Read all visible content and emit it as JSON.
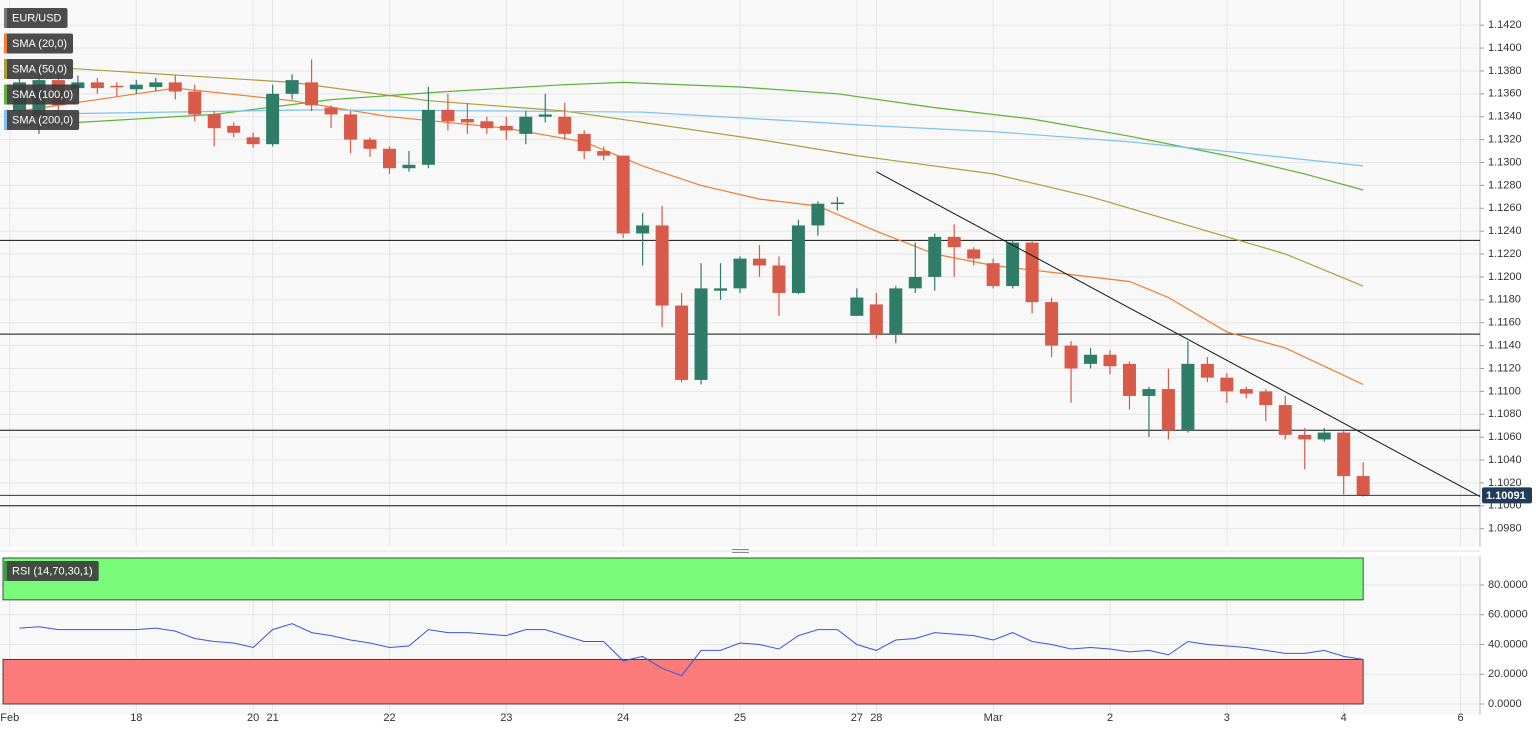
{
  "chart_data": [
    {
      "type": "candlestick",
      "name": "EUR/USD",
      "up_color": "#2f7c68",
      "down_color": "#d85a48",
      "open": [
        1.1345,
        1.134,
        1.1372,
        1.1365,
        1.137,
        1.1367,
        1.1364,
        1.1366,
        1.137,
        1.1362,
        1.1342,
        1.1332,
        1.1322,
        1.1316,
        1.136,
        1.137,
        1.1348,
        1.1342,
        1.132,
        1.1312,
        1.1295,
        1.1298,
        1.1346,
        1.1338,
        1.1336,
        1.1332,
        1.1325,
        1.134,
        1.134,
        1.1325,
        1.131,
        1.1306,
        1.1238,
        1.1245,
        1.1175,
        1.111,
        1.1188,
        1.119,
        1.1216,
        1.121,
        1.1186,
        1.1245,
        1.1264,
        1.1166,
        1.1176,
        1.115,
        1.119,
        1.12,
        1.1235,
        1.1224,
        1.1212,
        1.1192,
        1.123,
        1.1178,
        1.114,
        1.1124,
        1.1132,
        1.1124,
        1.1096,
        1.1102,
        1.1066,
        1.1124,
        1.1112,
        1.1102,
        1.11,
        1.1088,
        1.1062,
        1.1058,
        1.1064,
        1.1026
      ],
      "high": [
        1.1375,
        1.1378,
        1.1378,
        1.1376,
        1.1374,
        1.137,
        1.1372,
        1.1374,
        1.1376,
        1.1368,
        1.1345,
        1.1335,
        1.1326,
        1.1368,
        1.1377,
        1.139,
        1.135,
        1.1345,
        1.1322,
        1.1314,
        1.131,
        1.1366,
        1.136,
        1.1352,
        1.134,
        1.134,
        1.1345,
        1.136,
        1.1352,
        1.1328,
        1.1314,
        1.1306,
        1.1256,
        1.1262,
        1.1186,
        1.1212,
        1.1212,
        1.1218,
        1.1228,
        1.1218,
        1.125,
        1.1266,
        1.127,
        1.119,
        1.1186,
        1.1192,
        1.123,
        1.1238,
        1.1246,
        1.1226,
        1.1216,
        1.1232,
        1.1232,
        1.1182,
        1.1144,
        1.1138,
        1.1136,
        1.1126,
        1.1104,
        1.112,
        1.1144,
        1.113,
        1.1116,
        1.1104,
        1.1102,
        1.1096,
        1.1068,
        1.1068,
        1.1066,
        1.1038
      ],
      "low": [
        1.1335,
        1.1325,
        1.134,
        1.136,
        1.136,
        1.1358,
        1.136,
        1.1362,
        1.1355,
        1.1336,
        1.1314,
        1.1322,
        1.1313,
        1.1314,
        1.1355,
        1.1345,
        1.133,
        1.1308,
        1.1305,
        1.129,
        1.1292,
        1.1295,
        1.1328,
        1.1325,
        1.1325,
        1.132,
        1.1316,
        1.1335,
        1.132,
        1.1303,
        1.1302,
        1.1234,
        1.121,
        1.1156,
        1.1108,
        1.1106,
        1.118,
        1.1186,
        1.12,
        1.1166,
        1.1185,
        1.1236,
        1.1258,
        1.1166,
        1.1146,
        1.1142,
        1.1186,
        1.1188,
        1.12,
        1.121,
        1.119,
        1.119,
        1.1168,
        1.113,
        1.109,
        1.112,
        1.1115,
        1.1084,
        1.106,
        1.1058,
        1.1064,
        1.1108,
        1.109,
        1.1094,
        1.1074,
        1.1058,
        1.1032,
        1.1056,
        1.101,
        1.1008
      ],
      "close": [
        1.137,
        1.1372,
        1.135,
        1.137,
        1.1365,
        1.1366,
        1.1368,
        1.137,
        1.1362,
        1.1342,
        1.133,
        1.1326,
        1.1316,
        1.136,
        1.1372,
        1.135,
        1.1342,
        1.132,
        1.1312,
        1.1295,
        1.1298,
        1.1346,
        1.1336,
        1.1335,
        1.133,
        1.1328,
        1.134,
        1.1342,
        1.1325,
        1.131,
        1.1306,
        1.1238,
        1.1245,
        1.1175,
        1.111,
        1.119,
        1.119,
        1.1216,
        1.121,
        1.1186,
        1.1245,
        1.1264,
        1.1265,
        1.1182,
        1.115,
        1.119,
        1.12,
        1.1235,
        1.1226,
        1.1216,
        1.1192,
        1.123,
        1.1178,
        1.114,
        1.112,
        1.1132,
        1.1122,
        1.1096,
        1.1102,
        1.1066,
        1.1124,
        1.1112,
        1.11,
        1.1098,
        1.1088,
        1.1062,
        1.1058,
        1.1064,
        1.1026,
        1.1009
      ],
      "xlim": [
        -1,
        75
      ],
      "xticks": [
        {
          "value": -0.5,
          "label": "Feb"
        },
        {
          "value": 6,
          "label": "18"
        },
        {
          "value": 12,
          "label": "20"
        },
        {
          "value": 13,
          "label": "21"
        },
        {
          "value": 19,
          "label": "22"
        },
        {
          "value": 25,
          "label": "23"
        },
        {
          "value": 31,
          "label": "24"
        },
        {
          "value": 37,
          "label": "25"
        },
        {
          "value": 43,
          "label": "27"
        },
        {
          "value": 44,
          "label": "28"
        },
        {
          "value": 50,
          "label": "Mar"
        },
        {
          "value": 56,
          "label": "2"
        },
        {
          "value": 62,
          "label": "3"
        },
        {
          "value": 68,
          "label": "4"
        },
        {
          "value": 74,
          "label": "6"
        }
      ],
      "ylim": [
        1.0964,
        1.1442
      ],
      "yticks": [
        {
          "value": 1.098,
          "label": "1.0980"
        },
        {
          "value": 1.1,
          "label": "1.1000"
        },
        {
          "value": 1.102,
          "label": "1.1020"
        },
        {
          "value": 1.104,
          "label": "1.1040"
        },
        {
          "value": 1.106,
          "label": "1.1060"
        },
        {
          "value": 1.108,
          "label": "1.1080"
        },
        {
          "value": 1.11,
          "label": "1.1100"
        },
        {
          "value": 1.112,
          "label": "1.1120"
        },
        {
          "value": 1.114,
          "label": "1.1140"
        },
        {
          "value": 1.116,
          "label": "1.1160"
        },
        {
          "value": 1.118,
          "label": "1.1180"
        },
        {
          "value": 1.12,
          "label": "1.1200"
        },
        {
          "value": 1.122,
          "label": "1.1220"
        },
        {
          "value": 1.124,
          "label": "1.1240"
        },
        {
          "value": 1.126,
          "label": "1.1260"
        },
        {
          "value": 1.128,
          "label": "1.1280"
        },
        {
          "value": 1.13,
          "label": "1.1300"
        },
        {
          "value": 1.132,
          "label": "1.1320"
        },
        {
          "value": 1.134,
          "label": "1.1340"
        },
        {
          "value": 1.136,
          "label": "1.1360"
        },
        {
          "value": 1.138,
          "label": "1.1380"
        },
        {
          "value": 1.14,
          "label": "1.1400"
        },
        {
          "value": 1.142,
          "label": "1.1420"
        }
      ],
      "overlays": [
        {
          "name": "SMA (20,0)",
          "color": "#ef7d31",
          "x": [
            0,
            8,
            14,
            19,
            25,
            29,
            32,
            35,
            38,
            41,
            44,
            47,
            50,
            54,
            57,
            59,
            62,
            65,
            69
          ],
          "values": [
            1.1345,
            1.1365,
            1.1354,
            1.134,
            1.133,
            1.1318,
            1.1297,
            1.128,
            1.1268,
            1.1262,
            1.124,
            1.122,
            1.121,
            1.1202,
            1.1196,
            1.1182,
            1.1152,
            1.1138,
            1.1106
          ]
        },
        {
          "name": "SMA (50,0)",
          "color": "#a9a03a",
          "x": [
            0,
            14,
            21,
            28,
            32,
            38,
            43,
            50,
            55,
            60,
            65,
            69
          ],
          "values": [
            1.1385,
            1.137,
            1.1354,
            1.1345,
            1.1335,
            1.132,
            1.1306,
            1.129,
            1.127,
            1.1245,
            1.122,
            1.1192
          ]
        },
        {
          "name": "SMA (100,0)",
          "color": "#5db337",
          "x": [
            0,
            10,
            16,
            22,
            28,
            31,
            37,
            42,
            47,
            52,
            57,
            62,
            66,
            69
          ],
          "values": [
            1.1332,
            1.1342,
            1.1355,
            1.1362,
            1.1368,
            1.137,
            1.1366,
            1.136,
            1.1348,
            1.1338,
            1.1323,
            1.1306,
            1.129,
            1.1276
          ]
        },
        {
          "name": "SMA (200,0)",
          "color": "#7cc4ef",
          "x": [
            0,
            15,
            25,
            32,
            38,
            44,
            50,
            57,
            63,
            69
          ],
          "values": [
            1.1342,
            1.1346,
            1.1345,
            1.1344,
            1.1338,
            1.1332,
            1.1327,
            1.1318,
            1.1308,
            1.1297
          ]
        }
      ],
      "levels": [
        1.1232,
        1.115,
        1.1066,
        1.1
      ],
      "trendline": {
        "x": [
          44,
          75
        ],
        "values": [
          1.1292,
          1.1008
        ]
      },
      "last_price": 1.10091,
      "grid": true
    },
    {
      "type": "line",
      "series": [
        {
          "name": "RSI (14,70,30,1)",
          "color": "#3a55d8",
          "values": [
            51,
            52,
            50,
            50,
            50,
            50,
            50,
            51,
            49,
            44,
            42,
            41,
            38,
            50,
            54,
            48,
            46,
            43,
            41,
            38,
            39,
            50,
            48,
            48,
            47,
            46,
            50,
            50,
            46,
            42,
            42,
            29,
            32,
            24,
            19,
            36,
            36,
            41,
            40,
            37,
            46,
            50,
            50,
            40,
            36,
            43,
            44,
            48,
            47,
            46,
            43,
            48,
            42,
            40,
            37,
            38,
            37,
            35,
            36,
            33,
            42,
            40,
            39,
            38,
            36,
            34,
            34,
            36,
            32,
            30
          ]
        }
      ],
      "ylim": [
        -7.4,
        99.5
      ],
      "yticks": [
        {
          "value": 0,
          "label": "0.0000"
        },
        {
          "value": 20,
          "label": "20.0000"
        },
        {
          "value": 40,
          "label": "40.0000"
        },
        {
          "value": 60,
          "label": "60.0000"
        },
        {
          "value": 80,
          "label": "80.0000"
        }
      ],
      "overbought": 70,
      "oversold": 30,
      "overbought_color": "#7afb7a",
      "oversold_color": "#fb7a7a",
      "grid": true
    }
  ]
}
